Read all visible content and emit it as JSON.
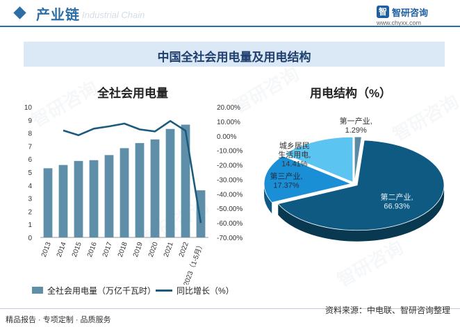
{
  "header": {
    "title": "产业链",
    "subtitle": "Industrial Chain",
    "logo_mark": "智",
    "logo_name": "智研咨询",
    "logo_url": "www.chyxx.com"
  },
  "banner_title": "中国全社会用电量及用电结构",
  "watermark": "智研咨询",
  "chart_data": [
    {
      "type": "bar",
      "title": "全社会用电量",
      "categories": [
        "2013",
        "2014",
        "2015",
        "2016",
        "2017",
        "2018",
        "2019",
        "2020",
        "2021",
        "2022",
        "2023（1-5月）"
      ],
      "series": [
        {
          "name": "全社会用电量（万亿千瓦时）",
          "type": "bar",
          "axis": "left",
          "color": "#5f8fa8",
          "values": [
            5.3,
            5.55,
            5.86,
            5.92,
            6.31,
            6.84,
            7.23,
            7.51,
            8.31,
            8.64,
            3.61
          ]
        },
        {
          "name": "同比增长（%）",
          "type": "line",
          "axis": "right",
          "color": "#1b5b7d",
          "values": [
            null,
            3.8,
            0.5,
            5.0,
            6.6,
            8.5,
            4.5,
            3.1,
            10.3,
            3.6,
            -60.0
          ]
        }
      ],
      "y_left": {
        "min": 0,
        "max": 10,
        "ticks": [
          "0",
          "1",
          "2",
          "3",
          "4",
          "5",
          "6",
          "7",
          "8",
          "9",
          "10"
        ]
      },
      "y_right": {
        "min": -70,
        "max": 20,
        "ticks": [
          "-70.00%",
          "-60.00%",
          "-50.00%",
          "-40.00%",
          "-30.00%",
          "-20.00%",
          "-10.00%",
          "0.00%",
          "10.00%",
          "20.00%"
        ]
      },
      "grid": false,
      "legend_position": "bottom"
    },
    {
      "type": "pie",
      "title": "用电结构（%）",
      "labels": [
        "第一产业",
        "第二产业",
        "第三产业",
        "城乡居民生活用电"
      ],
      "label_lines": [
        [
          "第一产业,",
          "1.29%"
        ],
        [
          "第二产业,",
          "66.93%"
        ],
        [
          "第三产业,",
          "17.37%"
        ],
        [
          "城乡居民",
          "生活用电,",
          "14.41%"
        ]
      ],
      "values": [
        1.29,
        66.93,
        17.37,
        14.41
      ],
      "colors": [
        "#5b8aa3",
        "#0f5a82",
        "#1b8fd6",
        "#5cc4f0"
      ],
      "style": "3d-exploded"
    }
  ],
  "footer": {
    "left": "精品报告 · 专项定制 · 品质服务",
    "right": "资料来源：中电联、智研咨询整理"
  }
}
